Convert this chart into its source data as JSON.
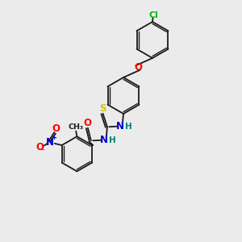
{
  "bg_color": "#ebebeb",
  "bond_color": "#1a1a1a",
  "atom_colors": {
    "O": "#ff0000",
    "N": "#0000cd",
    "S": "#cccc00",
    "Cl": "#00bb00",
    "H": "#008080",
    "C": "#1a1a1a"
  },
  "figsize": [
    3.0,
    3.0
  ],
  "dpi": 100
}
